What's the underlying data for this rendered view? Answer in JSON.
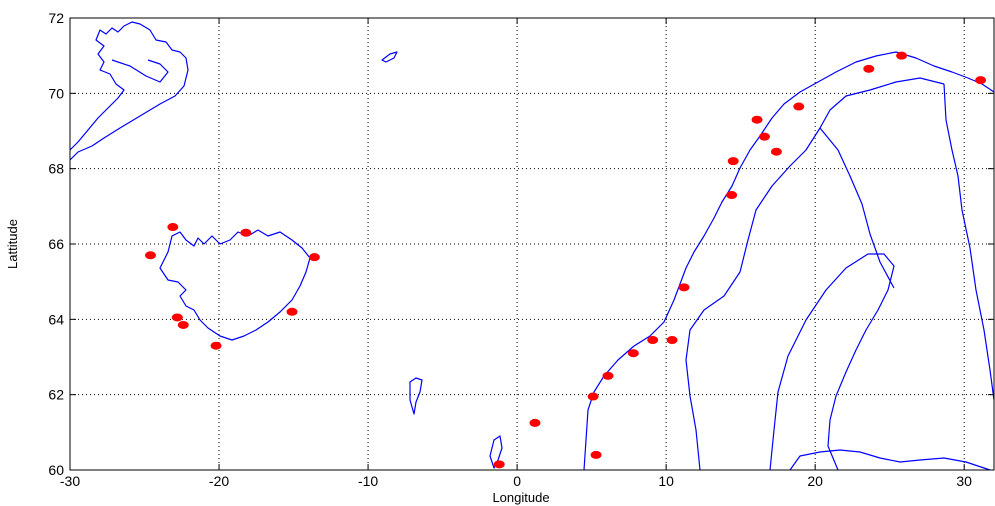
{
  "chart_data": {
    "type": "scatter",
    "title": "",
    "xlabel": "Longitude",
    "ylabel": "Lattitude",
    "xlim": [
      -30,
      32
    ],
    "ylim": [
      60,
      72
    ],
    "x_ticks": [
      -30,
      -20,
      -10,
      0,
      10,
      20,
      30
    ],
    "y_ticks": [
      60,
      62,
      64,
      66,
      68,
      70,
      72
    ],
    "grid": true,
    "colors": {
      "coastline": "#0000ff",
      "stations": "#ff0000",
      "grid": "#000000"
    },
    "series": [
      {
        "points": [
          {
            "x": 31.1,
            "y": 70.35
          },
          {
            "x": 25.8,
            "y": 71.0
          },
          {
            "x": 23.6,
            "y": 70.65
          },
          {
            "x": 18.9,
            "y": 69.65
          },
          {
            "x": 16.1,
            "y": 69.3
          },
          {
            "x": 16.6,
            "y": 68.85
          },
          {
            "x": 17.4,
            "y": 68.45
          },
          {
            "x": 14.5,
            "y": 68.2
          },
          {
            "x": 14.4,
            "y": 67.3
          },
          {
            "x": 11.2,
            "y": 64.85
          },
          {
            "x": 10.4,
            "y": 63.45
          },
          {
            "x": 9.1,
            "y": 63.45
          },
          {
            "x": 7.8,
            "y": 63.1
          },
          {
            "x": 6.1,
            "y": 62.5
          },
          {
            "x": 5.1,
            "y": 61.95
          },
          {
            "x": 5.3,
            "y": 60.4
          },
          {
            "x": 1.2,
            "y": 61.25
          },
          {
            "x": -1.2,
            "y": 60.15
          },
          {
            "x": -23.1,
            "y": 66.45
          },
          {
            "x": -24.6,
            "y": 65.7
          },
          {
            "x": -18.2,
            "y": 66.3
          },
          {
            "x": -13.6,
            "y": 65.65
          },
          {
            "x": -22.8,
            "y": 64.05
          },
          {
            "x": -22.4,
            "y": 63.85
          },
          {
            "x": -20.2,
            "y": 63.3
          },
          {
            "x": -15.1,
            "y": 64.2
          }
        ]
      }
    ]
  }
}
